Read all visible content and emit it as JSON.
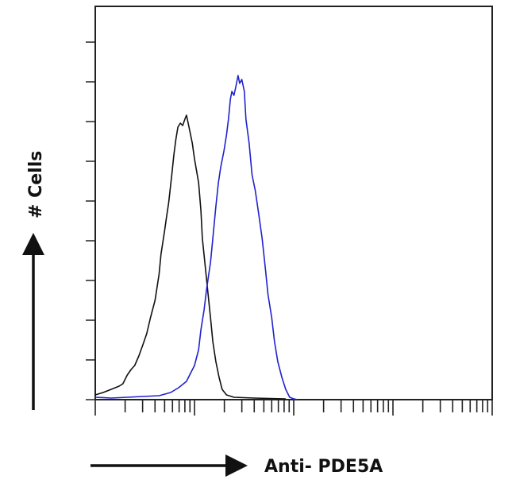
{
  "chart_data": {
    "type": "line",
    "title": "",
    "xlabel": "Anti- PDE5A",
    "ylabel": "# Cells",
    "x_scale": "log",
    "xlim": [
      1,
      10000
    ],
    "ylim": [
      0,
      9.9
    ],
    "y_ticks": [
      0,
      1,
      2,
      3,
      4,
      5,
      6,
      7,
      8,
      9
    ],
    "grid": false,
    "legend": "none",
    "series": [
      {
        "color": "#111111",
        "x": [
          1,
          1.2,
          1.45,
          1.74,
          1.9,
          2.1,
          2.3,
          2.5,
          2.75,
          3.0,
          3.3,
          3.6,
          4.0,
          4.4,
          4.6,
          5.0,
          5.2,
          5.5,
          5.9,
          6.2,
          6.5,
          6.8,
          7.2,
          7.6,
          8.0,
          8.3,
          8.8,
          9.5,
          10,
          11,
          11.6,
          12,
          12.7,
          13.7,
          14.5,
          15.3,
          16.4,
          17.7,
          19,
          21,
          25,
          40,
          83
        ],
        "y": [
          0.12,
          0.18,
          0.26,
          0.34,
          0.4,
          0.62,
          0.76,
          0.86,
          1.1,
          1.36,
          1.66,
          2.06,
          2.5,
          3.16,
          3.66,
          4.26,
          4.56,
          4.96,
          5.66,
          6.16,
          6.56,
          6.86,
          6.96,
          6.9,
          7.06,
          7.16,
          6.86,
          6.46,
          6.06,
          5.46,
          4.76,
          4.06,
          3.46,
          2.66,
          2.06,
          1.46,
          0.96,
          0.56,
          0.26,
          0.12,
          0.06,
          0.04,
          0.02
        ]
      },
      {
        "color": "#2222cc",
        "x": [
          1,
          1.45,
          2.1,
          3.0,
          4.4,
          5.75,
          6.9,
          8.3,
          9.1,
          10,
          11,
          11.6,
          12.5,
          13.2,
          14.5,
          15.3,
          16.4,
          17.4,
          18.4,
          19.8,
          21,
          22,
          23,
          23.8,
          25,
          26,
          27.5,
          28.5,
          30,
          31.8,
          33,
          35.5,
          38,
          41,
          44.5,
          48,
          52,
          55,
          60,
          64,
          69,
          76,
          83,
          91,
          100,
          110
        ],
        "y": [
          0.06,
          0.04,
          0.06,
          0.08,
          0.1,
          0.18,
          0.3,
          0.46,
          0.66,
          0.86,
          1.26,
          1.76,
          2.26,
          2.76,
          3.46,
          4.06,
          4.86,
          5.46,
          5.86,
          6.26,
          6.66,
          7.06,
          7.56,
          7.76,
          7.66,
          7.86,
          8.16,
          7.96,
          8.06,
          7.76,
          7.06,
          6.46,
          5.66,
          5.26,
          4.66,
          4.06,
          3.26,
          2.66,
          2.06,
          1.46,
          0.96,
          0.56,
          0.26,
          0.06,
          0.02,
          0
        ]
      }
    ]
  }
}
